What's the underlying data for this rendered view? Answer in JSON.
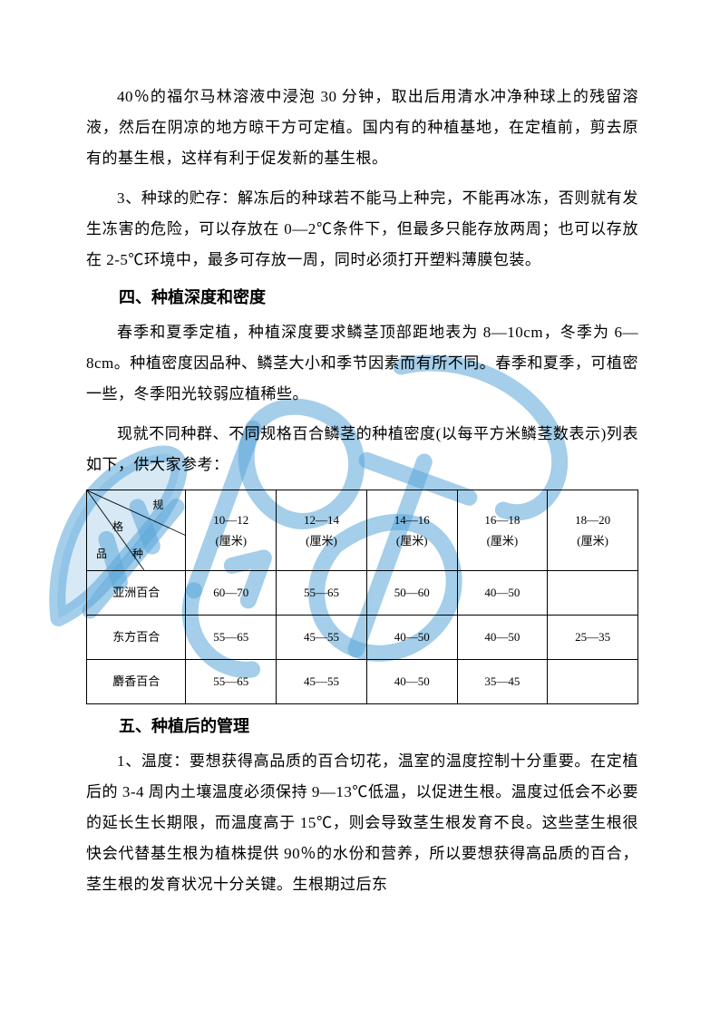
{
  "paragraphs": {
    "p1": "40％的福尔马林溶液中浸泡 30 分钟，取出后用清水冲净种球上的残留溶液，然后在阴凉的地方晾干方可定植。国内有的种植基地，在定植前，剪去原有的基生根，这样有利于促发新的基生根。",
    "p2": "3、种球的贮存：解冻后的种球若不能马上种完，不能再冰冻，否则就有发生冻害的危险，可以存放在 0—2℃条件下，但最多只能存放两周；也可以存放在 2-5℃环境中，最多可存放一周，同时必须打开塑料薄膜包装。",
    "h4": "四、种植深度和密度",
    "p3": "春季和夏季定植，种植深度要求鳞茎顶部距地表为 8—10cm，冬季为 6—8cm。种植密度因品种、鳞茎大小和季节因素而有所不同。春季和夏季，可植密一些，冬季阳光较弱应植稀些。",
    "p4": "现就不同种群、不同规格百合鳞茎的种植密度(以每平方米鳞茎数表示)列表如下，供大家参考：",
    "h5": "五、种植后的管理",
    "p5": "1、温度：要想获得高品质的百合切花，温室的温度控制十分重要。在定植后的 3-4 周内土壤温度必须保持 9—13℃低温，以促进生根。温度过低会不必要的延长生长期限，而温度高于 15℃，则会导致茎生根发育不良。这些茎生根很快会代替基生根为植株提供 90％的水份和营养，所以要想获得高品质的百合，茎生根的发育状况十分关键。生根期过后东"
  },
  "table": {
    "corner": {
      "top": "规",
      "mid": "格",
      "bot1": "品",
      "bot2": "种"
    },
    "columns": [
      {
        "size": "10—12",
        "unit": "(厘米)"
      },
      {
        "size": "12—14",
        "unit": "(厘米)"
      },
      {
        "size": "14—16",
        "unit": "(厘米)"
      },
      {
        "size": "16—18",
        "unit": "(厘米)"
      },
      {
        "size": "18—20",
        "unit": "(厘米)"
      }
    ],
    "rows": [
      {
        "label": "亚洲百合",
        "cells": [
          "60—70",
          "55—65",
          "50—60",
          "40—50",
          ""
        ]
      },
      {
        "label": "东方百合",
        "cells": [
          "55—65",
          "45—55",
          "40—50",
          "40—50",
          "25—35"
        ]
      },
      {
        "label": "麝香百合",
        "cells": [
          "55—65",
          "45—55",
          "40—50",
          "35—45",
          ""
        ]
      }
    ],
    "col_widths": [
      "18%",
      "16.4%",
      "16.4%",
      "16.4%",
      "16.4%",
      "16.4%"
    ],
    "font_size": 13
  },
  "watermark": {
    "color": "#5aa6d8",
    "opacity": 0.55
  }
}
